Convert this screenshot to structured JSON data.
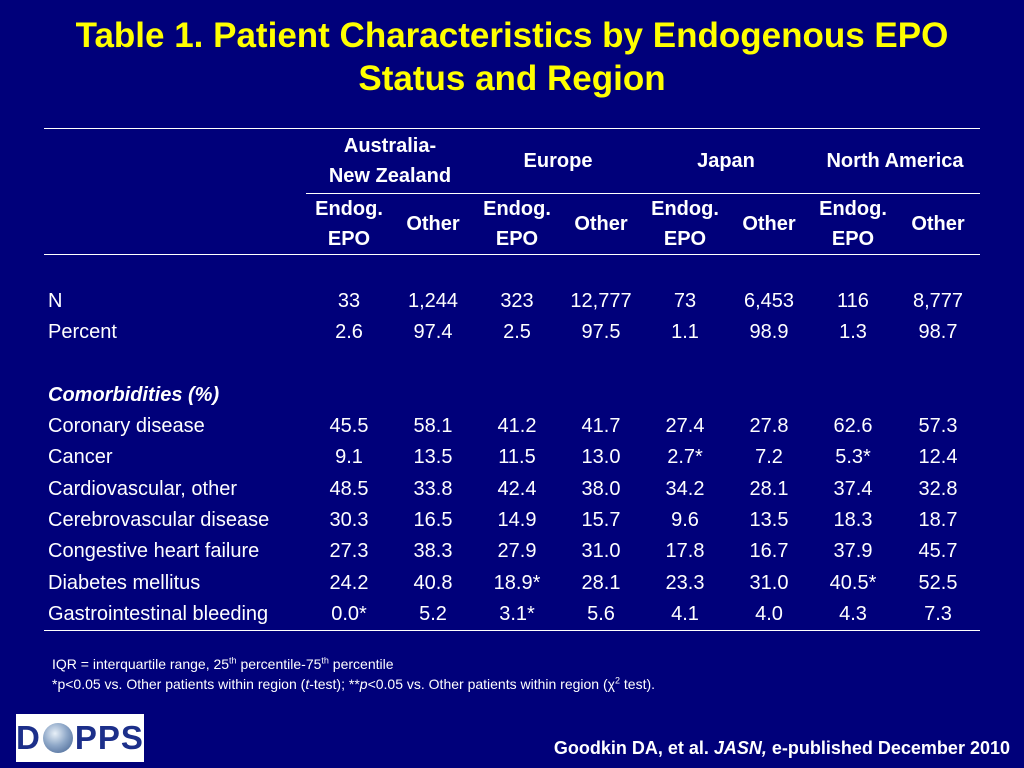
{
  "title": {
    "line1": "Table 1. Patient Characteristics by Endogenous EPO",
    "line2": "Status and Region"
  },
  "regions": {
    "anz_line1": "Australia-",
    "anz_line2": "New Zealand",
    "europe": "Europe",
    "japan": "Japan",
    "north_america": "North America"
  },
  "subheaders": {
    "endog_line1": "Endog.",
    "endog_line2": "EPO",
    "other": "Other"
  },
  "rows_basic": [
    {
      "label": "N",
      "values": [
        "33",
        "1,244",
        "323",
        "12,777",
        "73",
        "6,453",
        "116",
        "8,777"
      ]
    },
    {
      "label": "Percent",
      "values": [
        "2.6",
        "97.4",
        "2.5",
        "97.5",
        "1.1",
        "98.9",
        "1.3",
        "98.7"
      ]
    }
  ],
  "section_label": "Comorbidities (%)",
  "rows_comorbid": [
    {
      "label": "Coronary disease",
      "values": [
        "45.5",
        "58.1",
        "41.2",
        "41.7",
        "27.4",
        "27.8",
        "62.6",
        "57.3"
      ]
    },
    {
      "label": "Cancer",
      "values": [
        "9.1",
        "13.5",
        "11.5",
        "13.0",
        "2.7*",
        "7.2",
        "5.3*",
        "12.4"
      ]
    },
    {
      "label": "Cardiovascular, other",
      "values": [
        "48.5",
        "33.8",
        "42.4",
        "38.0",
        "34.2",
        "28.1",
        "37.4",
        "32.8"
      ]
    },
    {
      "label": "Cerebrovascular disease",
      "values": [
        "30.3",
        "16.5",
        "14.9",
        "15.7",
        "9.6",
        "13.5",
        "18.3",
        "18.7"
      ]
    },
    {
      "label": "Congestive heart failure",
      "values": [
        "27.3",
        "38.3",
        "27.9",
        "31.0",
        "17.8",
        "16.7",
        "37.9",
        "45.7"
      ]
    },
    {
      "label": "Diabetes mellitus",
      "values": [
        "24.2",
        "40.8",
        "18.9*",
        "28.1",
        "23.3",
        "31.0",
        "40.5*",
        "52.5"
      ]
    },
    {
      "label": "Gastrointestinal bleeding",
      "values": [
        "0.0*",
        "5.2",
        "3.1*",
        "5.6",
        "4.1",
        "4.0",
        "4.3",
        "7.3"
      ]
    }
  ],
  "footnotes": {
    "f1_a": "IQR = interquartile range, 25",
    "f1_sup1": "th",
    "f1_b": " percentile-75",
    "f1_sup2": "th",
    "f1_c": " percentile",
    "f2_a": "*p<0.05 vs. Other patients within region (",
    "f2_t": "t",
    "f2_b": "-test); **",
    "f2_p": "p",
    "f2_c": "<0.05 vs. Other patients within region (χ",
    "f2_sup": "2",
    "f2_d": " test)."
  },
  "logo": {
    "left": "D",
    "right": "PPS"
  },
  "citation": {
    "a": "Goodkin DA, et al. ",
    "journal": "JASN,",
    "b": " e-published December 2010"
  },
  "colors": {
    "background": "#00007a",
    "title": "#ffff00",
    "text": "#ffffff",
    "logo_text": "#1c2f8a"
  }
}
